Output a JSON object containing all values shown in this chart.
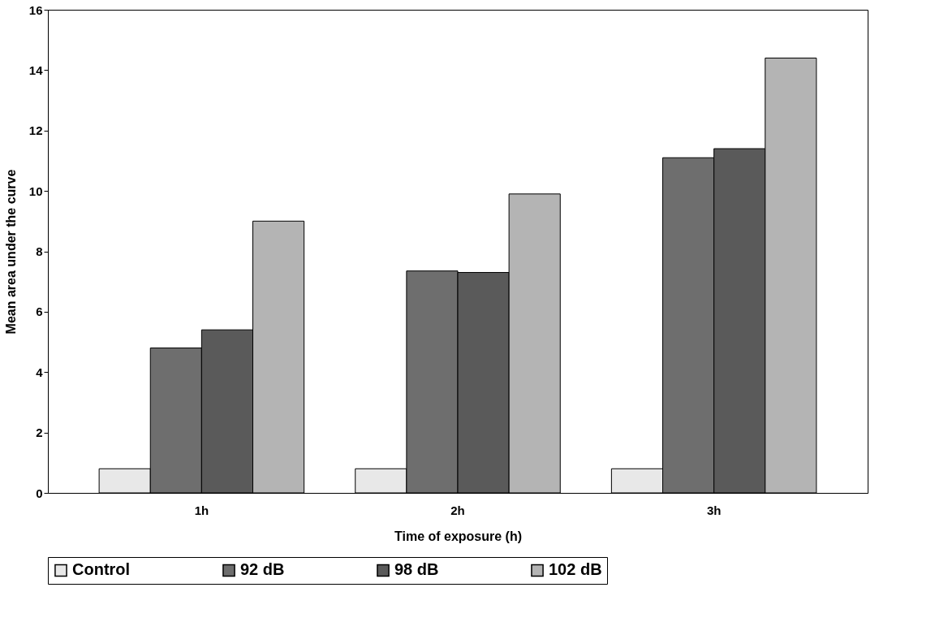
{
  "chart_data": {
    "type": "bar",
    "xlabel": "Time of exposure (h)",
    "ylabel": "Mean area under the curve",
    "categories": [
      "1h",
      "2h",
      "3h"
    ],
    "series": [
      {
        "name": "Control",
        "color": "#e8e8e8",
        "values": [
          0.8,
          0.8,
          0.8
        ]
      },
      {
        "name": "92 dB",
        "color": "#6e6e6e",
        "values": [
          4.8,
          7.35,
          11.1
        ]
      },
      {
        "name": "98 dB",
        "color": "#5a5a5a",
        "values": [
          5.4,
          7.3,
          11.4
        ]
      },
      {
        "name": "102 dB",
        "color": "#b4b4b4",
        "values": [
          9.0,
          9.9,
          14.4
        ]
      }
    ],
    "ylim": [
      0,
      16
    ],
    "yticks": [
      0,
      2,
      4,
      6,
      8,
      10,
      12,
      14,
      16
    ],
    "grid": false,
    "legend": "bottom"
  }
}
